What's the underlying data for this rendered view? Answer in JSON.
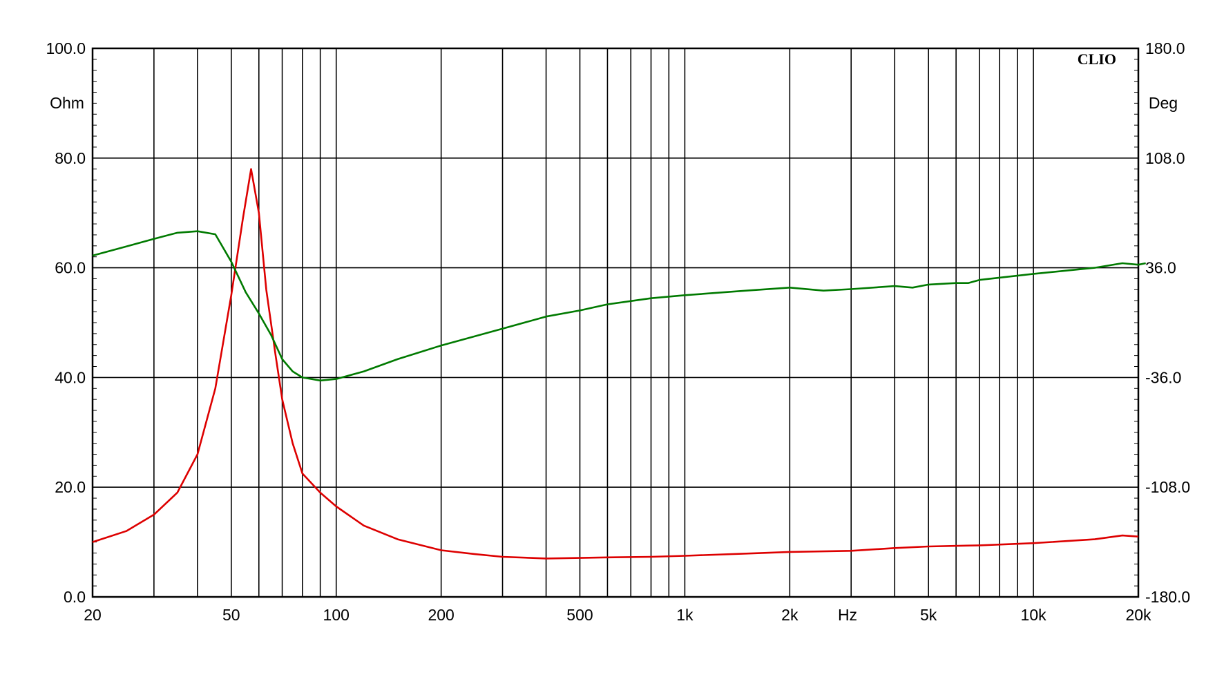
{
  "chart_data": {
    "type": "line",
    "brand": "CLIO",
    "x_unit": "Hz",
    "x_scale": "log",
    "xlim": [
      20,
      20000
    ],
    "y_left_unit": "Ohm",
    "y_right_unit": "Deg",
    "y_left_lim": [
      0,
      100
    ],
    "y_right_lim": [
      -180,
      180
    ],
    "grid": true,
    "x_ticks": [
      {
        "value": 20,
        "label": "20"
      },
      {
        "value": 50,
        "label": "50"
      },
      {
        "value": 100,
        "label": "100"
      },
      {
        "value": 200,
        "label": "200"
      },
      {
        "value": 500,
        "label": "500"
      },
      {
        "value": 1000,
        "label": "1k"
      },
      {
        "value": 2000,
        "label": "2k"
      },
      {
        "value": 5000,
        "label": "5k"
      },
      {
        "value": 10000,
        "label": "10k"
      },
      {
        "value": 20000,
        "label": "20k"
      }
    ],
    "x_gridlines": [
      30,
      40,
      50,
      60,
      70,
      80,
      90,
      100,
      200,
      300,
      400,
      500,
      600,
      700,
      800,
      900,
      1000,
      2000,
      3000,
      4000,
      5000,
      6000,
      7000,
      8000,
      9000,
      10000
    ],
    "y_left_ticks": [
      {
        "value": 0,
        "label": "0.0"
      },
      {
        "value": 20,
        "label": "20.0"
      },
      {
        "value": 40,
        "label": "40.0"
      },
      {
        "value": 60,
        "label": "60.0"
      },
      {
        "value": 80,
        "label": "80.0"
      },
      {
        "value": 100,
        "label": "100.0"
      }
    ],
    "y_right_ticks": [
      {
        "value": -180,
        "label": "-180.0"
      },
      {
        "value": -108,
        "label": "-108.0"
      },
      {
        "value": -36,
        "label": "-36.0"
      },
      {
        "value": 36,
        "label": "36.0"
      },
      {
        "value": 108,
        "label": "108.0"
      },
      {
        "value": 180,
        "label": "180.0"
      }
    ],
    "series": [
      {
        "axis": "left",
        "color": "#dd0000",
        "points": [
          [
            20,
            10.0
          ],
          [
            25,
            12.0
          ],
          [
            30,
            15.0
          ],
          [
            35,
            19.0
          ],
          [
            40,
            26.0
          ],
          [
            45,
            38.0
          ],
          [
            50,
            55.0
          ],
          [
            54,
            69.0
          ],
          [
            57,
            78.0
          ],
          [
            60,
            70.0
          ],
          [
            63,
            56.0
          ],
          [
            67,
            44.0
          ],
          [
            70,
            36.0
          ],
          [
            75,
            28.0
          ],
          [
            80,
            22.5
          ],
          [
            90,
            19.0
          ],
          [
            100,
            16.5
          ],
          [
            120,
            13.0
          ],
          [
            150,
            10.5
          ],
          [
            200,
            8.5
          ],
          [
            250,
            7.8
          ],
          [
            300,
            7.3
          ],
          [
            400,
            7.0
          ],
          [
            500,
            7.1
          ],
          [
            600,
            7.2
          ],
          [
            800,
            7.3
          ],
          [
            1000,
            7.5
          ],
          [
            1500,
            7.9
          ],
          [
            2000,
            8.2
          ],
          [
            3000,
            8.4
          ],
          [
            4000,
            8.9
          ],
          [
            5000,
            9.2
          ],
          [
            7000,
            9.4
          ],
          [
            10000,
            9.8
          ],
          [
            15000,
            10.5
          ],
          [
            18000,
            11.2
          ],
          [
            20000,
            11.0
          ]
        ]
      },
      {
        "axis": "right",
        "color": "#007a00",
        "points": [
          [
            20,
            44
          ],
          [
            25,
            50
          ],
          [
            30,
            55
          ],
          [
            35,
            59
          ],
          [
            40,
            60
          ],
          [
            45,
            58
          ],
          [
            50,
            40
          ],
          [
            55,
            20
          ],
          [
            60,
            6
          ],
          [
            65,
            -8
          ],
          [
            70,
            -24
          ],
          [
            75,
            -32
          ],
          [
            80,
            -36
          ],
          [
            90,
            -38
          ],
          [
            100,
            -37
          ],
          [
            120,
            -32
          ],
          [
            150,
            -24
          ],
          [
            200,
            -15
          ],
          [
            300,
            -4
          ],
          [
            400,
            4
          ],
          [
            500,
            8
          ],
          [
            600,
            12
          ],
          [
            800,
            16
          ],
          [
            1000,
            18
          ],
          [
            1500,
            21
          ],
          [
            2000,
            23
          ],
          [
            2500,
            21
          ],
          [
            3000,
            22
          ],
          [
            4000,
            24
          ],
          [
            4500,
            23
          ],
          [
            5000,
            25
          ],
          [
            6000,
            26
          ],
          [
            6500,
            26
          ],
          [
            7000,
            28
          ],
          [
            10000,
            32
          ],
          [
            15000,
            36
          ],
          [
            18000,
            39
          ],
          [
            20000,
            38
          ],
          [
            21000,
            39
          ]
        ]
      }
    ]
  }
}
